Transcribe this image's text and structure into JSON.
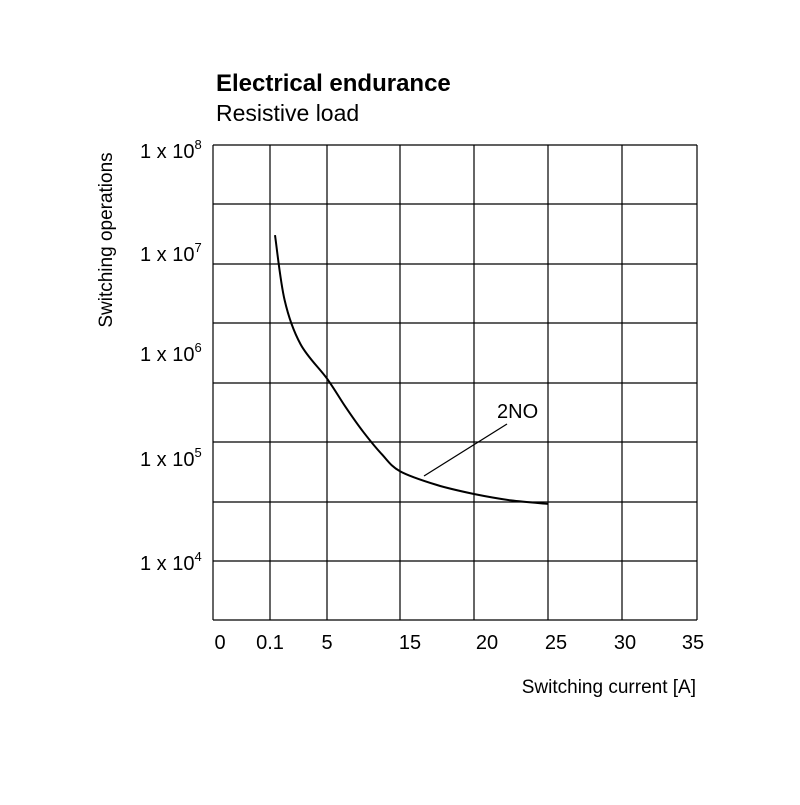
{
  "chart_data": {
    "type": "line",
    "title": "Electrical endurance",
    "subtitle": "Resistive load",
    "xlabel": "Switching current [A]",
    "ylabel": "Switching operations",
    "x_tick_labels": [
      "0",
      "0.1",
      "5",
      "15",
      "20",
      "25",
      "30",
      "35"
    ],
    "y_tick_labels": [
      {
        "base": "1 x 10",
        "exp": "8"
      },
      {
        "base": "1 x 10",
        "exp": "7"
      },
      {
        "base": "1 x 10",
        "exp": "6"
      },
      {
        "base": "1 x 10",
        "exp": "5"
      },
      {
        "base": "1 x 10",
        "exp": "4"
      }
    ],
    "y_scale": "log",
    "grid": true,
    "series": [
      {
        "name": "2NO",
        "points": [
          {
            "x": 0.1,
            "y": 15000000
          },
          {
            "x": 1,
            "y": 3500000
          },
          {
            "x": 2.5,
            "y": 1300000
          },
          {
            "x": 5,
            "y": 600000
          },
          {
            "x": 7.5,
            "y": 320000
          },
          {
            "x": 10,
            "y": 180000
          },
          {
            "x": 12.5,
            "y": 110000
          },
          {
            "x": 15,
            "y": 75000
          },
          {
            "x": 17.5,
            "y": 55000
          },
          {
            "x": 20,
            "y": 45000
          },
          {
            "x": 22.5,
            "y": 39000
          },
          {
            "x": 25,
            "y": 36000
          }
        ]
      }
    ]
  }
}
